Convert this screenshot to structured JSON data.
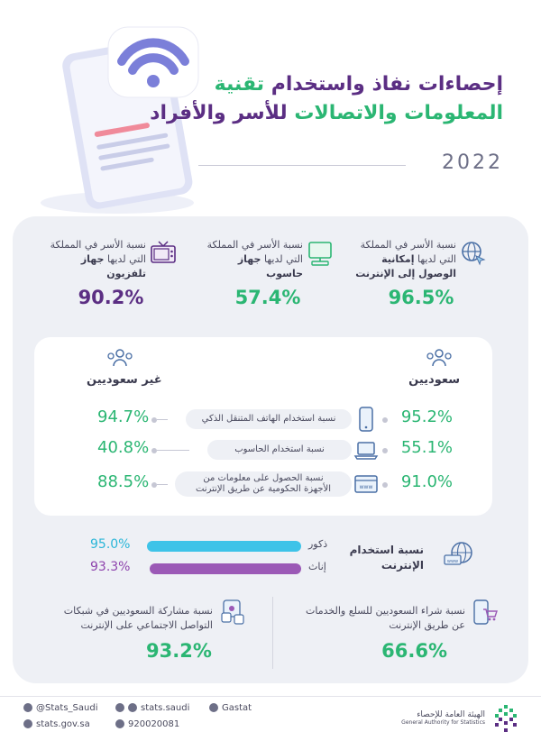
{
  "header": {
    "title_line1_purple": "إحصاءات نفاذ واستخدام",
    "title_line1_green": "تقنية",
    "title_line2_green": "المعلومات والاتصالات",
    "title_line2_purple": "للأسر والأفراد",
    "year": "2022"
  },
  "top_stats": [
    {
      "text_pre": "نسبة الأسر في المملكة التي لديها",
      "text_bold": "إمكانية الوصول إلى الإنترنت",
      "value": "96.5%",
      "icon": "globe-cursor-icon",
      "color": "#2bb673"
    },
    {
      "text_pre": "نسبة الأسر في المملكة التي لديها",
      "text_bold": "جهاز حاسوب",
      "value": "57.4%",
      "icon": "computer-icon",
      "color": "#2bb673"
    },
    {
      "text_pre": "نسبة الأسر في المملكة التي لديها",
      "text_bold": "جهاز تلفزيون",
      "value": "90.2%",
      "icon": "tv-icon",
      "color": "#5b2e83"
    }
  ],
  "comparison": {
    "saudi_label": "سعوديين",
    "non_saudi_label": "غير سعوديين",
    "rows": [
      {
        "label": "نسبة استخدام الهاتف المتنقل الذكي",
        "saudi": "95.2%",
        "non_saudi": "94.7%",
        "icon": "smartphone-icon"
      },
      {
        "label": "نسبة استخدام الحاسوب",
        "saudi": "55.1%",
        "non_saudi": "40.8%",
        "icon": "laptop-icon"
      },
      {
        "label_line1": "نسبة الحصول على معلومات من",
        "label_line2": "الأجهزة الحكومية عن طريق الإنترنت",
        "saudi": "91.0%",
        "non_saudi": "88.5%",
        "icon": "www-browser-icon"
      }
    ]
  },
  "internet_usage": {
    "label_line1": "نسبة استخدام",
    "label_line2": "الإنترنت",
    "male_label": "ذكور",
    "male_value": "95.0%",
    "male_pct": 95.0,
    "male_color": "#3ec3e8",
    "female_label": "إناث",
    "female_value": "93.3%",
    "female_pct": 93.3,
    "female_color": "#9b59b6"
  },
  "bottom_stats": [
    {
      "line1": "نسبة شراء السعوديين للسلع والخدمات",
      "line2": "عن طريق الإنترنت",
      "value": "66.6%",
      "icon": "shopping-cart-phone-icon"
    },
    {
      "line1": "نسبة مشاركة السعوديين في شبكات",
      "line2": "التواصل الاجتماعي على الإنترنت",
      "value": "93.2%",
      "icon": "social-network-icon"
    }
  ],
  "footer": {
    "twitter": "@Stats_Saudi",
    "web": "stats.gov.sa",
    "facebook_instagram": "stats.saudi",
    "phone": "920020081",
    "linkedin": "Gastat",
    "org_ar": "الهيئة العامة للإحصاء",
    "org_en": "General Authority for Statistics"
  },
  "colors": {
    "purple": "#5b2e83",
    "green": "#2bb673",
    "panel": "#eef0f5"
  }
}
